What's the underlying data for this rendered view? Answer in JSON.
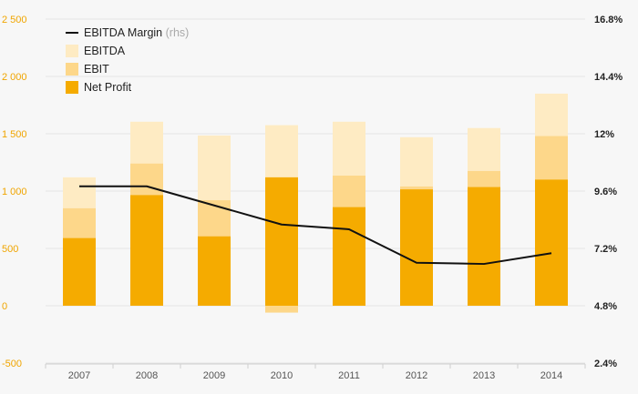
{
  "chart_data": {
    "type": "bar",
    "categories": [
      "2007",
      "2008",
      "2009",
      "2010",
      "2011",
      "2012",
      "2013",
      "2014"
    ],
    "series": [
      {
        "name": "Net Profit",
        "kind": "bar",
        "axis": "left",
        "color": "#f5ab00",
        "values": [
          590,
          965,
          605,
          1120,
          860,
          1015,
          1035,
          1100
        ]
      },
      {
        "name": "EBIT",
        "kind": "bar",
        "axis": "left",
        "color": "#fdd78a",
        "values": [
          850,
          1240,
          920,
          -60,
          1135,
          1040,
          1175,
          1480
        ]
      },
      {
        "name": "EBITDA",
        "kind": "bar",
        "axis": "left",
        "color": "#feebc3",
        "values": [
          1120,
          1605,
          1485,
          1575,
          1605,
          1470,
          1550,
          1850
        ]
      },
      {
        "name": "EBITDA Margin",
        "kind": "line",
        "axis": "right",
        "color": "#111111",
        "values": [
          9.8,
          9.8,
          9.0,
          8.2,
          8.0,
          6.6,
          6.55,
          7.0
        ]
      }
    ],
    "yticks_left": [
      "2 500",
      "2 000",
      "1 500",
      "1 000",
      "500",
      "0",
      "-500"
    ],
    "yticks_right": [
      "16.8%",
      "14.4%",
      "12%",
      "9.6%",
      "7.2%",
      "4.8%",
      "2.4%"
    ],
    "ylim_left": [
      -500,
      2500
    ],
    "ylim_right": [
      2.4,
      16.8
    ],
    "legend_position": "top-left",
    "grid": true
  },
  "legend": [
    {
      "label": "EBITDA Margin",
      "suffix": " (rhs)",
      "marker": "line",
      "color": "#111111"
    },
    {
      "label": "EBITDA",
      "suffix": "",
      "marker": "box",
      "color": "#feebc3"
    },
    {
      "label": "EBIT",
      "suffix": "",
      "marker": "box",
      "color": "#fdd78a"
    },
    {
      "label": "Net Profit",
      "suffix": "",
      "marker": "box",
      "color": "#f5ab00"
    }
  ]
}
